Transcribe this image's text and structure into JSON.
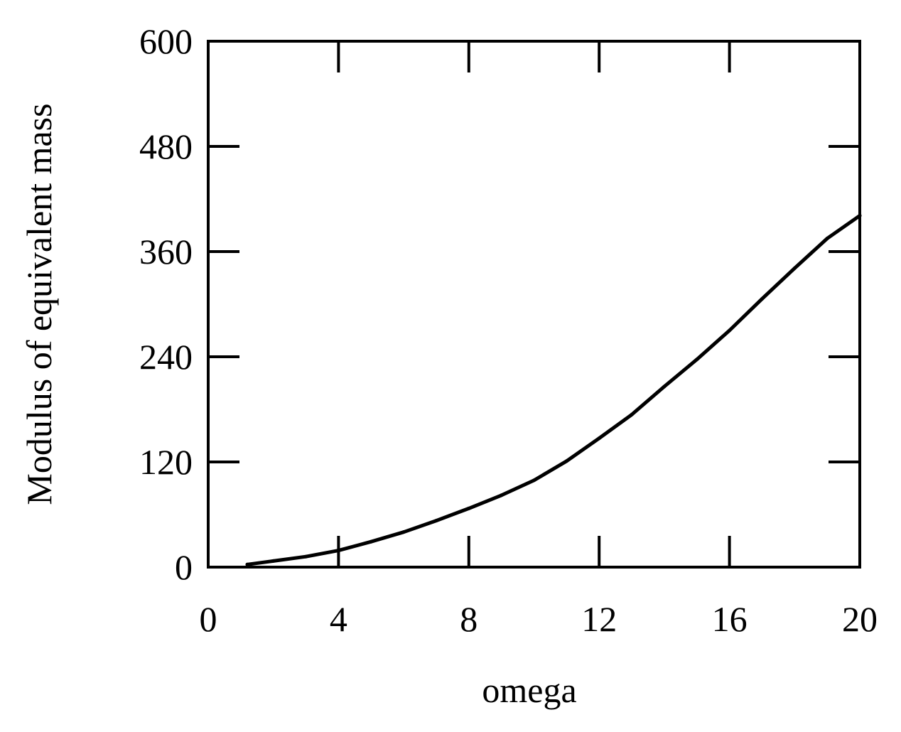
{
  "chart_data": {
    "type": "line",
    "xlabel": "omega",
    "ylabel": "Modulus of equivalent mass",
    "xlim": [
      0,
      20
    ],
    "ylim": [
      0,
      600
    ],
    "xticks": [
      0,
      4,
      8,
      12,
      16,
      20
    ],
    "yticks": [
      0,
      120,
      240,
      360,
      480,
      600
    ],
    "xtick_labels": [
      "0",
      "4",
      "8",
      "12",
      "16",
      "20"
    ],
    "ytick_labels": [
      "0",
      "120",
      "240",
      "360",
      "480",
      "600"
    ],
    "grid": false,
    "legend": "none",
    "series": [
      {
        "color": "#000000",
        "x": [
          1.2,
          2,
          3,
          4,
          5,
          6,
          7,
          8,
          9,
          10,
          11,
          12,
          13,
          14,
          15,
          16,
          17,
          18,
          19,
          20
        ],
        "y": [
          3,
          7,
          12,
          19,
          29,
          40,
          53,
          67,
          82,
          99,
          121,
          147,
          174,
          206,
          237,
          270,
          306,
          341,
          375,
          401
        ]
      }
    ]
  }
}
